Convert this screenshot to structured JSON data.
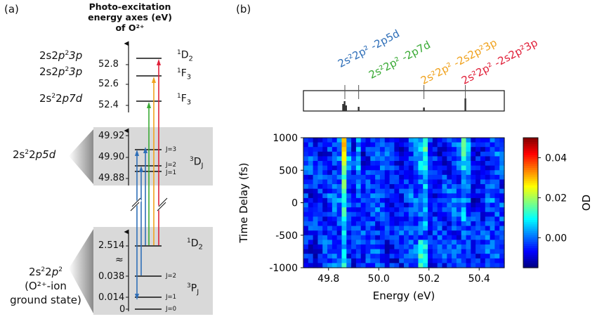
{
  "panel_a": {
    "label": "(a)",
    "axis_title": [
      "Photo-excitation",
      "energy axes (eV)",
      "of O²⁺"
    ],
    "upper_ticks": [
      "52.8",
      "52.6",
      "52.4"
    ],
    "upper_configs": [
      {
        "pre": "2s2",
        "it1": "p",
        "sup": "2",
        "it2": "3p"
      },
      {
        "pre": "2s2",
        "it1": "p",
        "sup": "2",
        "it2": "3p"
      },
      {
        "pre": "2s",
        "sup0": "2",
        "mid": "2",
        "it2": "p7d"
      }
    ],
    "upper_terms": [
      {
        "sup": "1",
        "main": "D",
        "sub": "2"
      },
      {
        "sup": "1",
        "main": "F",
        "sub": "3"
      },
      {
        "sup": "1",
        "main": "F",
        "sub": "3"
      }
    ],
    "mid_ticks": [
      "49.92",
      "49.90",
      "49.88"
    ],
    "mid_config": {
      "pre": "2s",
      "sup": "2",
      "mid": "2",
      "it": "p5d"
    },
    "mid_j": [
      "J=3",
      "J=2",
      "J=1"
    ],
    "mid_term": {
      "sup": "3",
      "main": "D",
      "sub": "J"
    },
    "low_ticks": [
      "2.514",
      "0.038",
      "0.014",
      "0"
    ],
    "low_config": {
      "pre": "2s",
      "sup": "2",
      "mid": "2",
      "it": "p",
      "sup2": "2"
    },
    "low_caption": [
      "(O²⁺-ion",
      "ground state)"
    ],
    "low_term_d": {
      "sup": "1",
      "main": "D",
      "sub": "2"
    },
    "low_term_p": {
      "sup": "3",
      "main": "P",
      "sub": "J"
    },
    "low_j": [
      "J=2",
      "J=1",
      "J=0"
    ],
    "break_symbol": "≈"
  },
  "panel_b": {
    "label": "(b)",
    "transitions": [
      {
        "text": "2s²2p² -2p5d",
        "color": "#2f6fb8"
      },
      {
        "text": "2s²2p² -2p7d",
        "color": "#3aaa35"
      },
      {
        "text": "2s²2p² -2s2p²3p",
        "color": "#f0a21e"
      },
      {
        "text": "2s²2p² -2s2p²3p",
        "color": "#e0213a"
      }
    ],
    "colorbar_label": "OD",
    "colorbar_ticks": [
      "0.04",
      "0.02",
      "0.00"
    ]
  },
  "chart_data": {
    "type": "heatmap",
    "xlabel": "Energy (eV)",
    "ylabel": "Time Delay (fs)",
    "xlim": [
      49.7,
      50.5
    ],
    "ylim": [
      -1000,
      1000
    ],
    "x_ticks": [
      "49.8",
      "50.0",
      "50.2",
      "50.4"
    ],
    "y_ticks": [
      "1000",
      "500",
      "0",
      "-500",
      "-1000"
    ],
    "colorbar": {
      "label": "OD",
      "range": [
        -0.015,
        0.05
      ],
      "ticks": [
        0.04,
        0.02,
        0.0
      ]
    },
    "peak_energies_eV": [
      49.865,
      49.92,
      50.18,
      50.345
    ],
    "stick_spectrum_eV": [
      49.86,
      49.87,
      49.92,
      50.18,
      50.345
    ]
  }
}
